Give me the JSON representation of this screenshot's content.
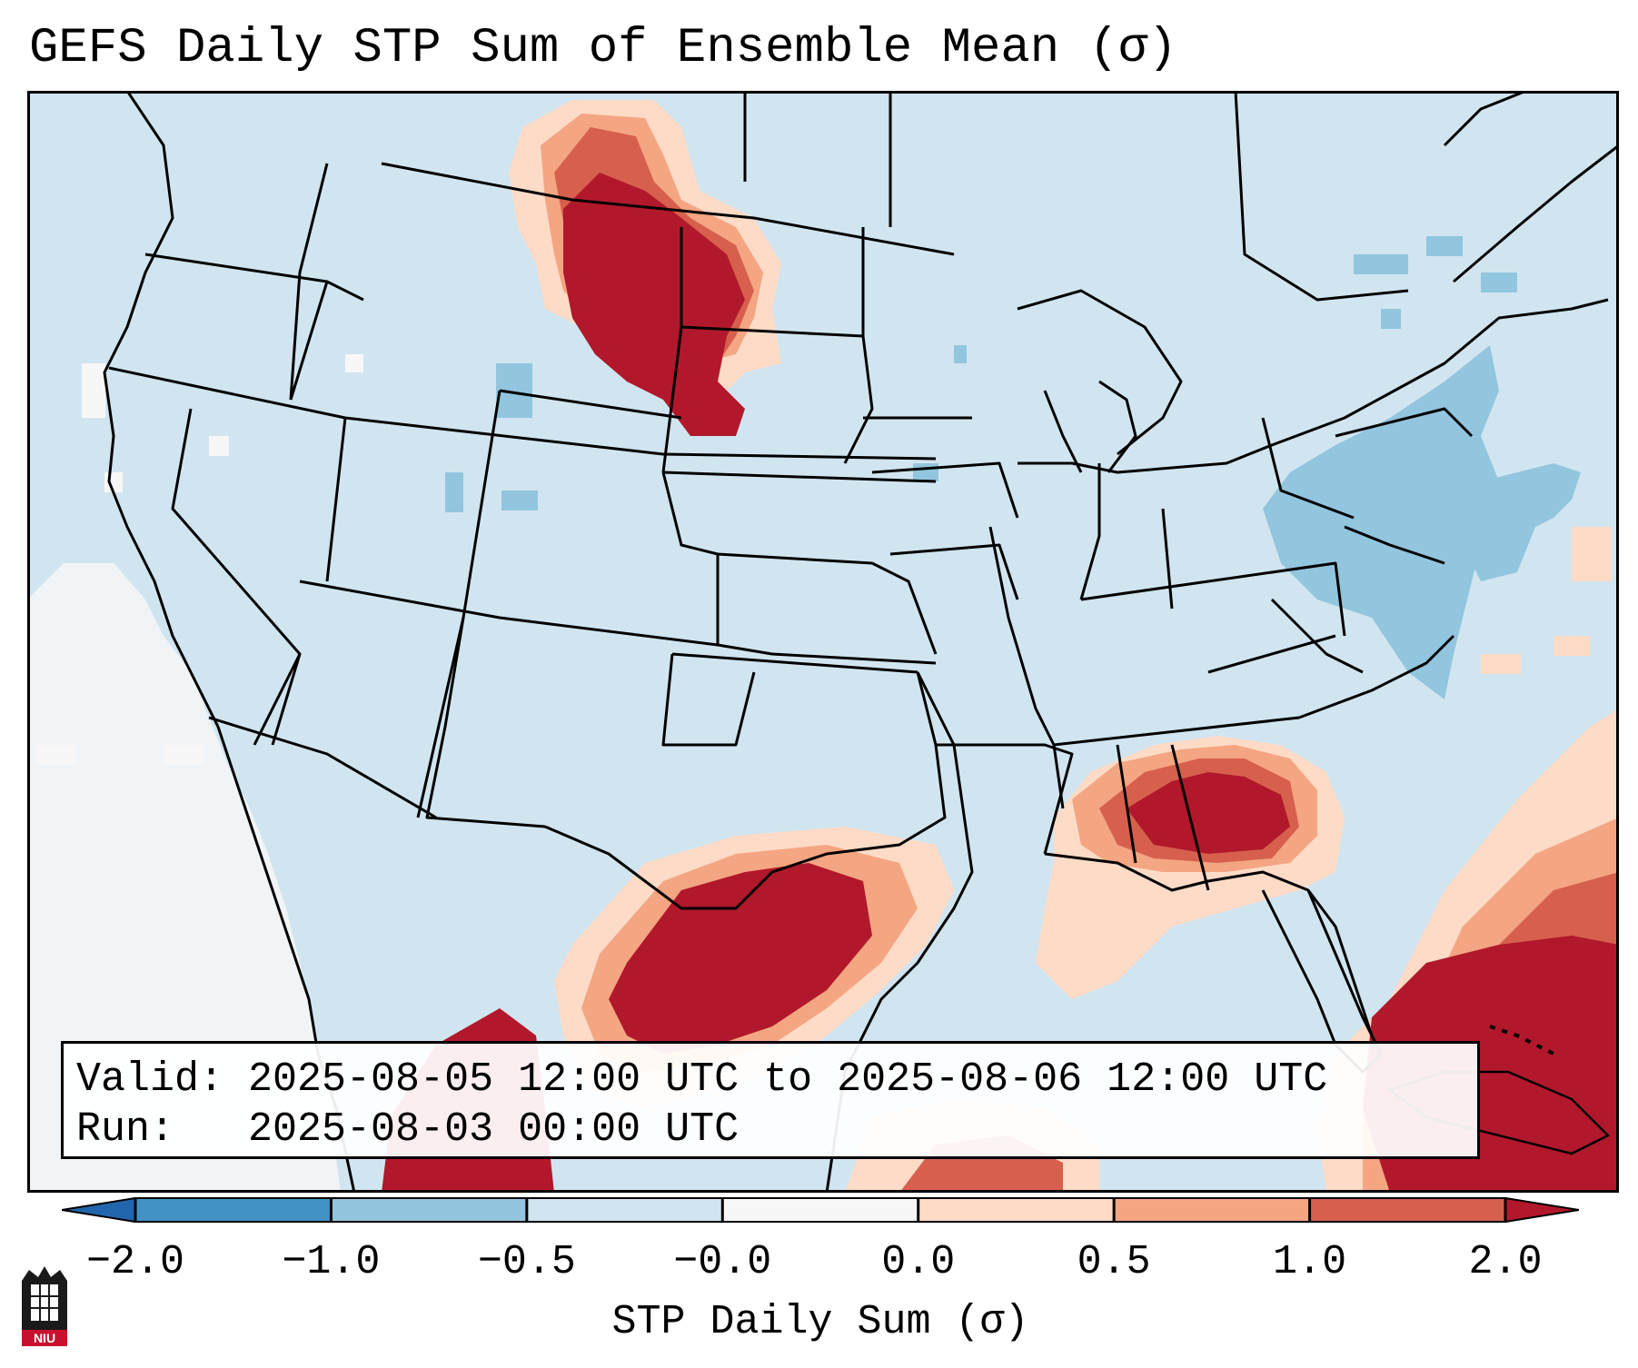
{
  "title": "GEFS Daily STP Sum of Ensemble Mean (σ)",
  "info": {
    "valid": "Valid: 2025-08-05 12:00 UTC to 2025-08-06 12:00 UTC",
    "run": "Run:   2025-08-03 00:00 UTC"
  },
  "colorbar": {
    "label": "STP Daily Sum (σ)",
    "ticks": [
      "−2.0",
      "−1.0",
      "−0.5",
      "−0.0",
      "0.0",
      "0.5",
      "1.0",
      "2.0"
    ],
    "colors": [
      "#4292c6",
      "#92c5de",
      "#d1e5f0",
      "#f7f7f7",
      "#fddbc7",
      "#f4a582",
      "#d6604d",
      "#b2182b"
    ],
    "extend_low_color": "#2166ac",
    "extend_high_color": "#b2182b"
  },
  "map": {
    "background_color": "#d1e5f0",
    "regions": [
      {
        "name": "northern-plains",
        "level": 2.0
      },
      {
        "name": "southeast-gulf",
        "level": 2.0
      },
      {
        "name": "south-texas",
        "level": 2.0
      },
      {
        "name": "caribbean",
        "level": 2.0
      },
      {
        "name": "northeast",
        "level": -1.0
      },
      {
        "name": "pacific-coast",
        "level": 0.0
      }
    ]
  },
  "logo": {
    "text": "NIU"
  }
}
